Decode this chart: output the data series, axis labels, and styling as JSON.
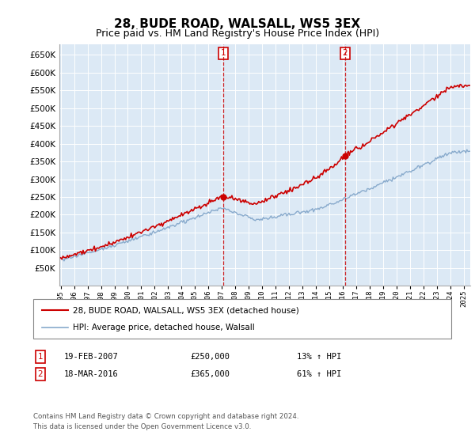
{
  "title": "28, BUDE ROAD, WALSALL, WS5 3EX",
  "subtitle": "Price paid vs. HM Land Registry's House Price Index (HPI)",
  "ylim": [
    0,
    680000
  ],
  "yticks": [
    50000,
    100000,
    150000,
    200000,
    250000,
    300000,
    350000,
    400000,
    450000,
    500000,
    550000,
    600000,
    650000
  ],
  "background_color": "#dce9f5",
  "legend_label_red": "28, BUDE ROAD, WALSALL, WS5 3EX (detached house)",
  "legend_label_blue": "HPI: Average price, detached house, Walsall",
  "transaction1_date": "19-FEB-2007",
  "transaction1_price": 250000,
  "transaction1_hpi": "13% ↑ HPI",
  "transaction2_date": "18-MAR-2016",
  "transaction2_price": 365000,
  "transaction2_hpi": "61% ↑ HPI",
  "footer": "Contains HM Land Registry data © Crown copyright and database right 2024.\nThis data is licensed under the Open Government Licence v3.0.",
  "red_color": "#cc0000",
  "blue_color": "#88aacc",
  "vline_color": "#cc0000",
  "marker_color": "#cc0000",
  "box_color": "#cc0000",
  "grid_color": "#ffffff",
  "title_fontsize": 11,
  "subtitle_fontsize": 9
}
